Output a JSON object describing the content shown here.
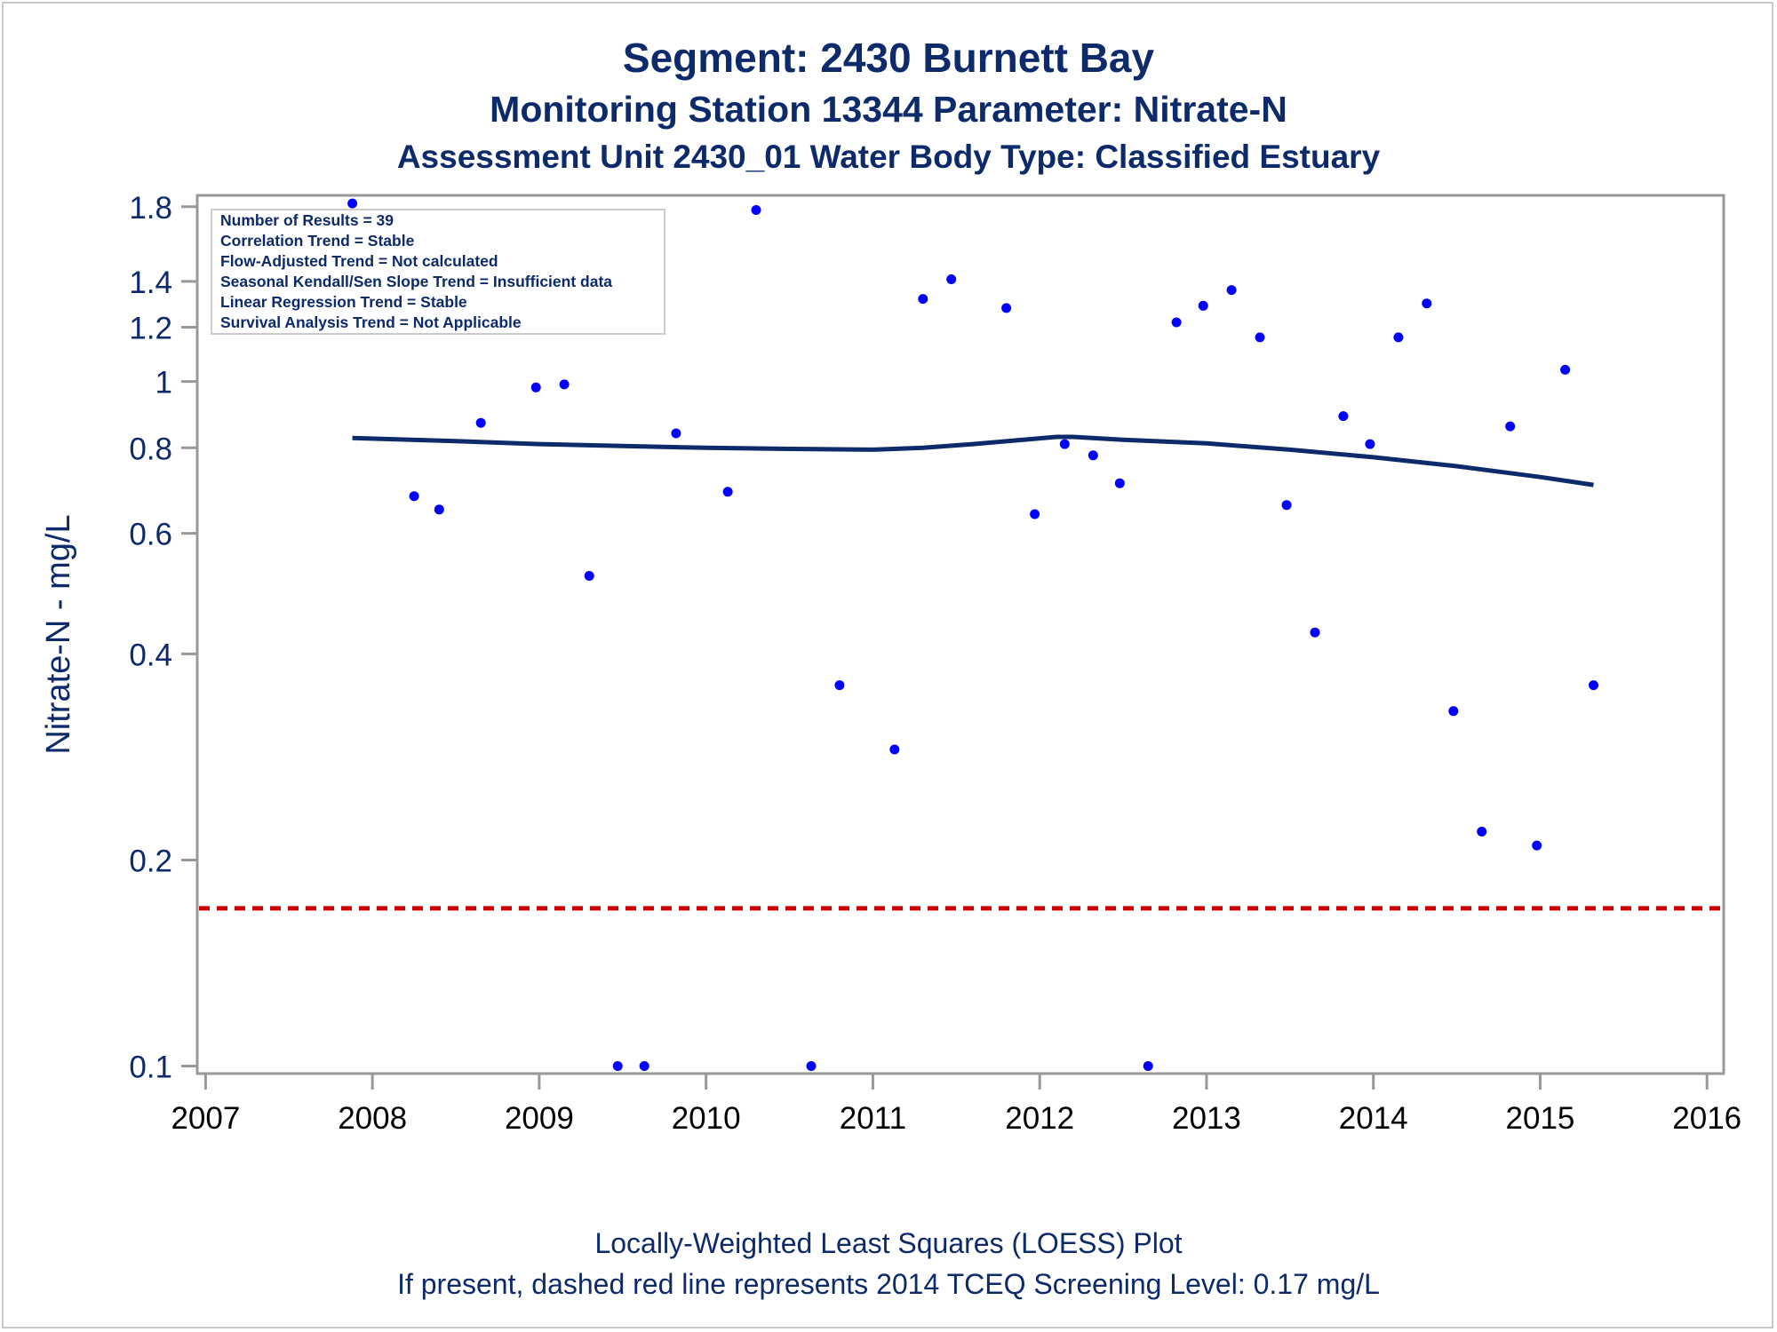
{
  "chart_data": {
    "type": "scatter",
    "title": "Segment: 2430  Burnett Bay",
    "subtitle": "Monitoring Station 13344 Parameter: Nitrate-N",
    "subtitle2": "Assessment Unit 2430_01   Water Body Type: Classified Estuary",
    "ylabel": "Nitrate-N - mg/L",
    "xlabel": "",
    "x_ticks": [
      "2007",
      "2008",
      "2009",
      "2010",
      "2011",
      "2012",
      "2013",
      "2014",
      "2015",
      "2016"
    ],
    "y_ticks": [
      "0.1",
      "0.2",
      "0.4",
      "0.6",
      "0.8",
      "1",
      "1.2",
      "1.4",
      "1.8"
    ],
    "y_scale": "log",
    "xlim": [
      2006.95,
      2016.1
    ],
    "ylim": [
      0.0975,
      1.87
    ],
    "legend_placement": "top-left",
    "stats": [
      "Number of Results = 39",
      "Correlation Trend = Stable",
      "Flow-Adjusted Trend = Not calculated",
      "Seasonal Kendall/Sen Slope Trend = Insufficient data",
      "Linear Regression Trend = Stable",
      "Survival Analysis Trend = Not Applicable"
    ],
    "points": {
      "x": [
        2007.88,
        2008.25,
        2008.4,
        2008.65,
        2008.98,
        2009.15,
        2009.3,
        2009.47,
        2009.63,
        2009.82,
        2010.13,
        2010.3,
        2010.63,
        2010.8,
        2011.13,
        2011.3,
        2011.47,
        2011.8,
        2011.97,
        2012.15,
        2012.32,
        2012.48,
        2012.65,
        2012.82,
        2012.98,
        2013.15,
        2013.32,
        2013.48,
        2013.65,
        2013.82,
        2013.98,
        2014.15,
        2014.32,
        2014.48,
        2014.65,
        2014.82,
        2014.98,
        2015.15,
        2015.32
      ],
      "y": [
        1.82,
        0.68,
        0.65,
        0.87,
        0.98,
        0.99,
        0.52,
        0.1,
        0.1,
        0.84,
        0.69,
        1.78,
        0.1,
        0.36,
        0.29,
        1.32,
        1.41,
        1.28,
        0.64,
        0.81,
        0.78,
        0.71,
        0.1,
        1.22,
        1.29,
        1.36,
        1.16,
        0.66,
        0.43,
        0.89,
        0.81,
        1.16,
        1.3,
        0.33,
        0.22,
        0.86,
        0.21,
        1.04,
        0.36
      ],
      "color": "#0000ff"
    },
    "loess": {
      "x": [
        2007.88,
        2008.5,
        2009.0,
        2009.5,
        2010.0,
        2010.5,
        2011.0,
        2011.3,
        2011.6,
        2011.9,
        2012.1,
        2012.2,
        2012.5,
        2013.0,
        2013.5,
        2014.0,
        2014.5,
        2015.0,
        2015.32
      ],
      "y": [
        0.827,
        0.818,
        0.81,
        0.805,
        0.8,
        0.797,
        0.795,
        0.8,
        0.81,
        0.822,
        0.83,
        0.83,
        0.822,
        0.812,
        0.795,
        0.775,
        0.752,
        0.725,
        0.706
      ],
      "color": "#0d2a6b"
    },
    "screening_level": {
      "y": 0.17,
      "color": "#cc0000"
    },
    "footnotes": [
      "Locally-Weighted Least Squares (LOESS) Plot",
      "If present, dashed red line represents 2014 TCEQ Screening Level: 0.17 mg/L"
    ]
  }
}
